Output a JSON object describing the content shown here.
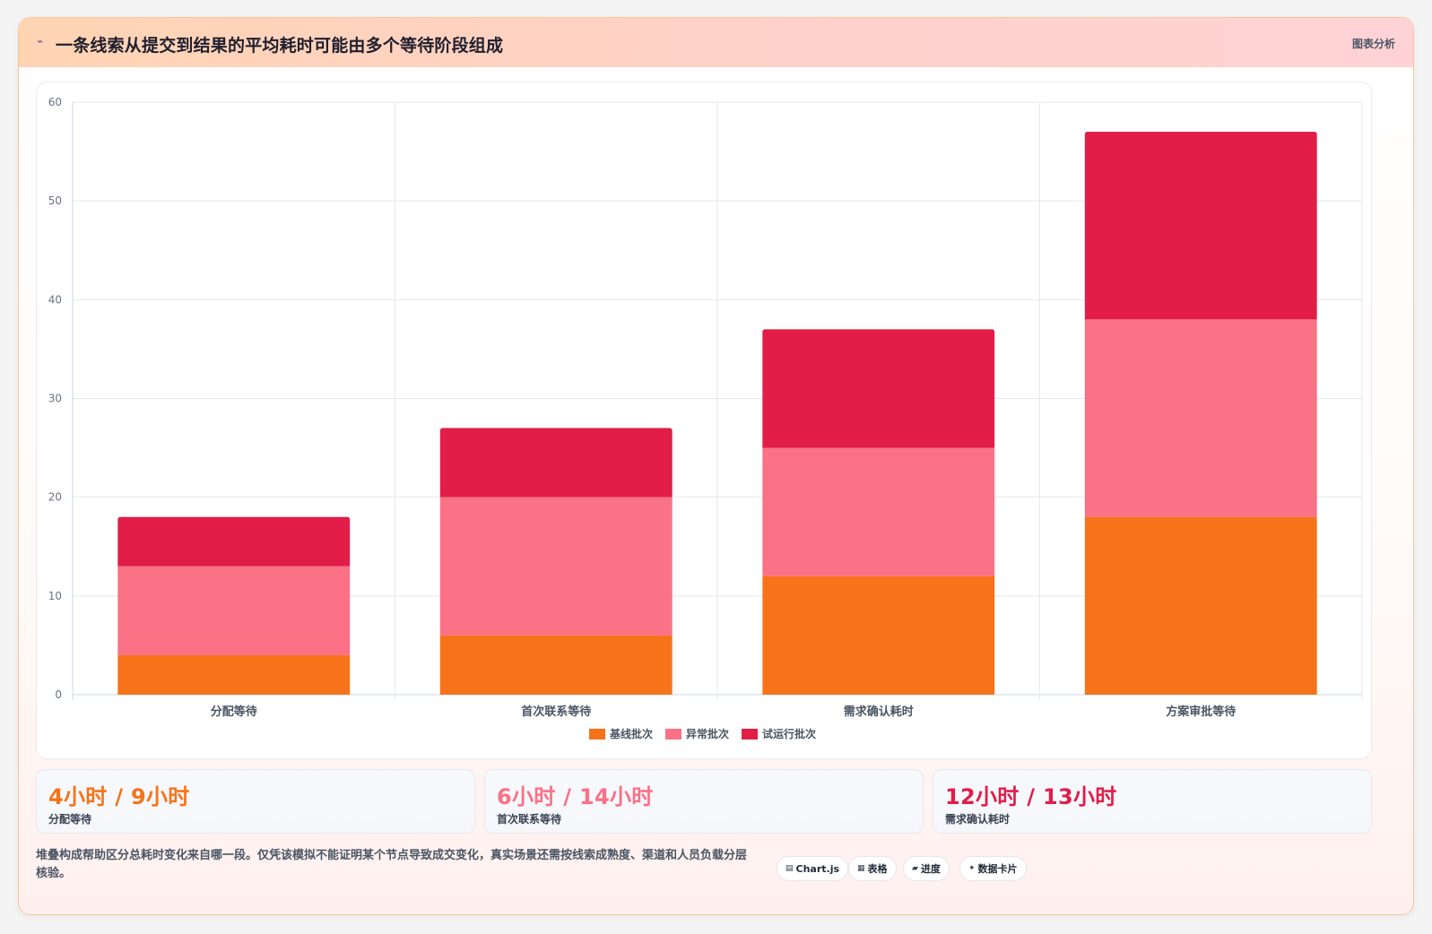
{
  "header": {
    "icon": "lightning-icon",
    "title": "一条线索从提交到结果的平均耗时可能由多个等待阶段组成",
    "tag": "图表分析"
  },
  "colors": {
    "baseline": "#f6731a",
    "abnormal": "#fb7185",
    "trial": "#e11d48"
  },
  "chart_data": {
    "type": "bar",
    "stacked": true,
    "categories": [
      "分配等待",
      "首次联系等待",
      "需求确认耗时",
      "方案审批等待"
    ],
    "series": [
      {
        "name": "基线批次",
        "color": "#f6731a",
        "values": [
          4,
          6,
          12,
          18
        ]
      },
      {
        "name": "异常批次",
        "color": "#fb7185",
        "values": [
          9,
          14,
          13,
          20
        ]
      },
      {
        "name": "试运行批次",
        "color": "#e11d48",
        "values": [
          5,
          7,
          12,
          19
        ]
      }
    ],
    "ylim": [
      0,
      60
    ],
    "yticks": [
      0,
      10,
      20,
      30,
      40,
      50,
      60
    ],
    "grid": true,
    "legend": "bottom"
  },
  "kpis": [
    {
      "value": "4小时 / 9小时",
      "label": "分配等待",
      "color": "#f6731a"
    },
    {
      "value": "6小时 / 14小时",
      "label": "首次联系等待",
      "color": "#fb7185"
    },
    {
      "value": "12小时 / 13小时",
      "label": "需求确认耗时",
      "color": "#e11d48"
    }
  ],
  "note": "堆叠构成帮助区分总耗时变化来自哪一段。仅凭该模拟不能证明某个节点导致成交变化，真实场景还需按线索成熟度、渠道和人员负载分层核验。",
  "pills": [
    {
      "icon": "chart-icon",
      "glyph": "▤",
      "label": "Chart.js"
    },
    {
      "icon": "table-icon",
      "glyph": "▦",
      "label": "表格"
    },
    {
      "icon": "progress-icon",
      "glyph": "▰",
      "label": "进度"
    },
    {
      "icon": "sparkle-icon",
      "glyph": "✦",
      "label": "数据卡片"
    }
  ]
}
